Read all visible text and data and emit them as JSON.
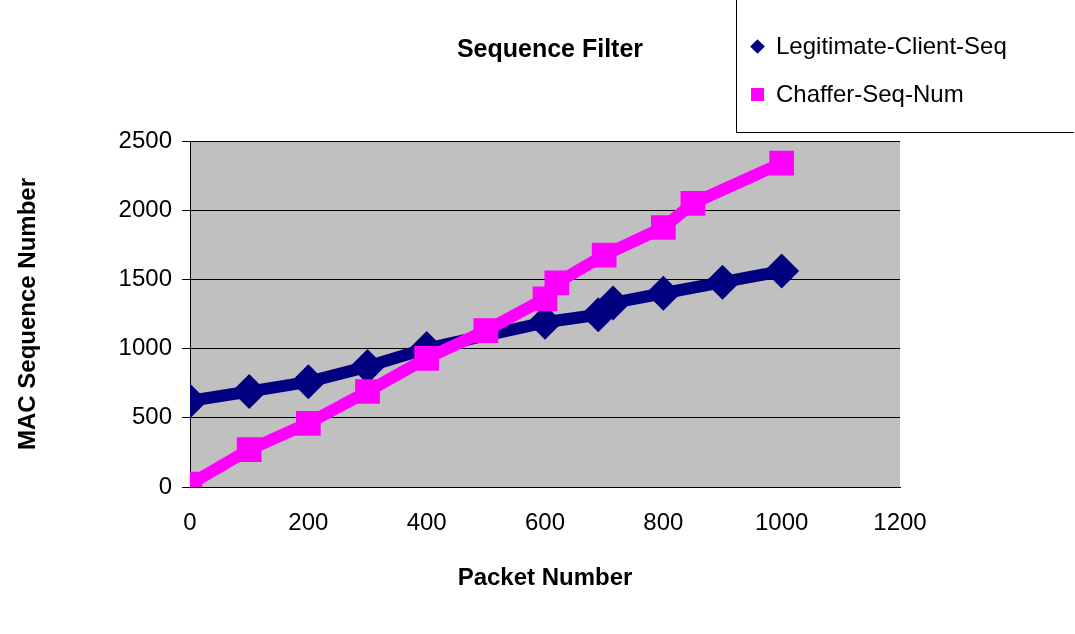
{
  "chart_data": {
    "type": "line",
    "title": "Sequence Filter",
    "xlabel": "Packet Number",
    "ylabel": "MAC Sequence Number",
    "series": [
      {
        "name": "Legitimate-Client-Seq",
        "color": "#000080",
        "marker": "diamond",
        "x": [
          0,
          100,
          200,
          300,
          400,
          600,
          690,
          715,
          800,
          900,
          1000
        ],
        "values": [
          622,
          690,
          760,
          870,
          1000,
          1190,
          1245,
          1330,
          1400,
          1480,
          1560
        ]
      },
      {
        "name": "Chaffer-Seq-Num",
        "color": "#ff00ff",
        "marker": "square",
        "x": [
          0,
          100,
          200,
          300,
          400,
          500,
          600,
          620,
          700,
          800,
          850,
          1000
        ],
        "values": [
          20,
          270,
          460,
          690,
          930,
          1130,
          1360,
          1475,
          1675,
          1875,
          2050,
          2340
        ]
      }
    ],
    "xlim": [
      0,
      1200
    ],
    "xticks": [
      0,
      200,
      400,
      600,
      800,
      1000,
      1200
    ],
    "ylim": [
      0,
      2500
    ],
    "yticks": [
      0,
      500,
      1000,
      1500,
      2000,
      2500
    ],
    "grid": "y",
    "legend": "top right"
  }
}
